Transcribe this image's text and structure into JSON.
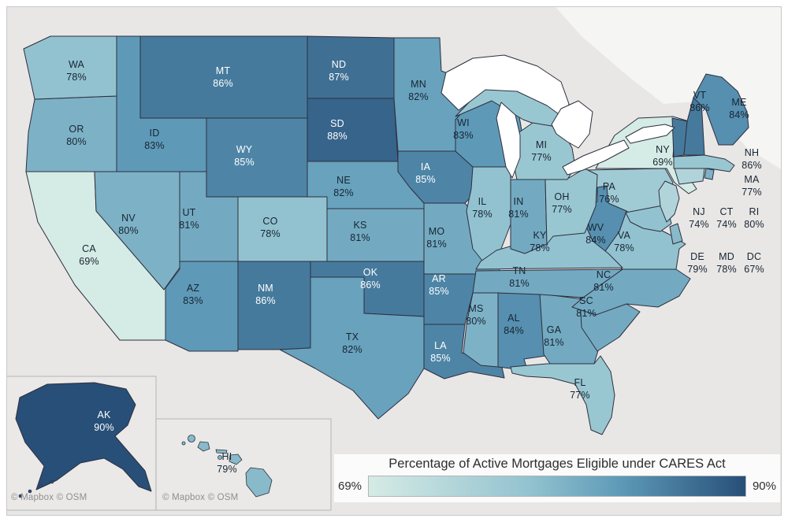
{
  "map": {
    "attribution": "© Mapbox © OSM"
  },
  "legend": {
    "title": "Percentage of Active Mortgages Eligible under CARES Act",
    "min_label": "69%",
    "max_label": "90%"
  },
  "color_scale": {
    "stops": [
      [
        69,
        "#d5ebe5"
      ],
      [
        78,
        "#92c2cf"
      ],
      [
        83,
        "#5e9ab8"
      ],
      [
        90,
        "#274f78"
      ]
    ],
    "ocean": "#e8e7e5",
    "lake": "#ffffff",
    "canada_fill": "#f5f5f3",
    "inset_fill": "#eae9e7",
    "inset_border": "#c6c6c6",
    "state_border": "#2e2e3e",
    "label_dark": "#182433",
    "label_light": "#ffffff"
  },
  "states": [
    {
      "abbr": "WA",
      "value": 78,
      "label": "78%"
    },
    {
      "abbr": "OR",
      "value": 80,
      "label": "80%"
    },
    {
      "abbr": "CA",
      "value": 69,
      "label": "69%"
    },
    {
      "abbr": "ID",
      "value": 83,
      "label": "83%"
    },
    {
      "abbr": "NV",
      "value": 80,
      "label": "80%"
    },
    {
      "abbr": "UT",
      "value": 81,
      "label": "81%"
    },
    {
      "abbr": "AZ",
      "value": 83,
      "label": "83%"
    },
    {
      "abbr": "MT",
      "value": 86,
      "label": "86%"
    },
    {
      "abbr": "WY",
      "value": 85,
      "label": "85%"
    },
    {
      "abbr": "CO",
      "value": 78,
      "label": "78%"
    },
    {
      "abbr": "NM",
      "value": 86,
      "label": "86%"
    },
    {
      "abbr": "ND",
      "value": 87,
      "label": "87%"
    },
    {
      "abbr": "SD",
      "value": 88,
      "label": "88%"
    },
    {
      "abbr": "NE",
      "value": 82,
      "label": "82%"
    },
    {
      "abbr": "KS",
      "value": 81,
      "label": "81%"
    },
    {
      "abbr": "OK",
      "value": 86,
      "label": "86%"
    },
    {
      "abbr": "TX",
      "value": 82,
      "label": "82%"
    },
    {
      "abbr": "MN",
      "value": 82,
      "label": "82%"
    },
    {
      "abbr": "IA",
      "value": 85,
      "label": "85%"
    },
    {
      "abbr": "MO",
      "value": 81,
      "label": "81%"
    },
    {
      "abbr": "AR",
      "value": 85,
      "label": "85%"
    },
    {
      "abbr": "LA",
      "value": 85,
      "label": "85%"
    },
    {
      "abbr": "WI",
      "value": 83,
      "label": "83%"
    },
    {
      "abbr": "IL",
      "value": 78,
      "label": "78%"
    },
    {
      "abbr": "MS",
      "value": 80,
      "label": "80%"
    },
    {
      "abbr": "MI",
      "value": 77,
      "label": "77%"
    },
    {
      "abbr": "IN",
      "value": 81,
      "label": "81%"
    },
    {
      "abbr": "OH",
      "value": 77,
      "label": "77%"
    },
    {
      "abbr": "KY",
      "value": 78,
      "label": "78%"
    },
    {
      "abbr": "TN",
      "value": 81,
      "label": "81%"
    },
    {
      "abbr": "AL",
      "value": 84,
      "label": "84%"
    },
    {
      "abbr": "GA",
      "value": 81,
      "label": "81%"
    },
    {
      "abbr": "FL",
      "value": 77,
      "label": "77%"
    },
    {
      "abbr": "PA",
      "value": 76,
      "label": "76%"
    },
    {
      "abbr": "WV",
      "value": 84,
      "label": "84%"
    },
    {
      "abbr": "VA",
      "value": 78,
      "label": "78%"
    },
    {
      "abbr": "NC",
      "value": 81,
      "label": "81%"
    },
    {
      "abbr": "SC",
      "value": 81,
      "label": "81%"
    },
    {
      "abbr": "NY",
      "value": 69,
      "label": "69%"
    },
    {
      "abbr": "VT",
      "value": 86,
      "label": "86%"
    },
    {
      "abbr": "NH",
      "value": 86,
      "label": "86%"
    },
    {
      "abbr": "ME",
      "value": 84,
      "label": "84%"
    },
    {
      "abbr": "MA",
      "value": 77,
      "label": "77%"
    },
    {
      "abbr": "NJ",
      "value": 74,
      "label": "74%"
    },
    {
      "abbr": "CT",
      "value": 74,
      "label": "74%"
    },
    {
      "abbr": "RI",
      "value": 80,
      "label": "80%"
    },
    {
      "abbr": "DE",
      "value": 79,
      "label": "79%"
    },
    {
      "abbr": "MD",
      "value": 78,
      "label": "78%"
    },
    {
      "abbr": "DC",
      "value": 67,
      "label": "67%"
    },
    {
      "abbr": "AK",
      "value": 90,
      "label": "90%"
    },
    {
      "abbr": "HI",
      "value": 79,
      "label": "79%"
    }
  ],
  "chart_data": {
    "type": "heatmap",
    "subtype": "us-choropleth-map",
    "title": "Percentage of Active Mortgages Eligible under CARES Act",
    "unit": "%",
    "colorbar_range": [
      69,
      90
    ],
    "legend_position": "bottom-right",
    "categories": [
      "WA",
      "OR",
      "CA",
      "ID",
      "NV",
      "UT",
      "AZ",
      "MT",
      "WY",
      "CO",
      "NM",
      "ND",
      "SD",
      "NE",
      "KS",
      "OK",
      "TX",
      "MN",
      "IA",
      "MO",
      "AR",
      "LA",
      "WI",
      "IL",
      "MS",
      "MI",
      "IN",
      "OH",
      "KY",
      "TN",
      "AL",
      "GA",
      "FL",
      "PA",
      "WV",
      "VA",
      "NC",
      "SC",
      "NY",
      "VT",
      "NH",
      "ME",
      "MA",
      "NJ",
      "CT",
      "RI",
      "DE",
      "MD",
      "DC",
      "AK",
      "HI"
    ],
    "values": [
      78,
      80,
      69,
      83,
      80,
      81,
      83,
      86,
      85,
      78,
      86,
      87,
      88,
      82,
      81,
      86,
      82,
      82,
      85,
      81,
      85,
      85,
      83,
      78,
      80,
      77,
      81,
      77,
      78,
      81,
      84,
      81,
      77,
      76,
      84,
      78,
      81,
      81,
      69,
      86,
      86,
      84,
      77,
      74,
      74,
      80,
      79,
      78,
      67,
      90,
      79
    ]
  }
}
